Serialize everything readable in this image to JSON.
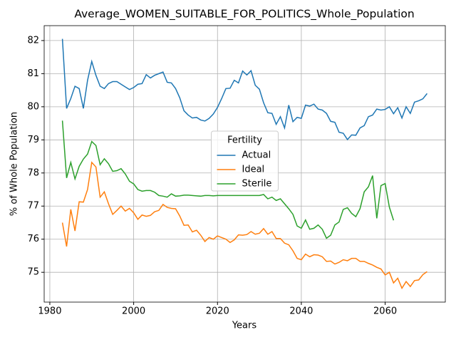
{
  "chart_data": {
    "type": "line",
    "title": "Average_WOMEN_SUITABLE_FOR_POLITICS_Whole_Population",
    "xlabel": "Years",
    "ylabel": "% of Whole Population",
    "legend_title": "Fertility",
    "legend": "center",
    "grid": true,
    "xlim": [
      1978.65,
      2074.35
    ],
    "xticks": [
      1980,
      2000,
      2020,
      2040,
      2060
    ],
    "ylim": [
      74.1,
      82.45
    ],
    "yticks": [
      75,
      76,
      77,
      78,
      79,
      80,
      81,
      82
    ],
    "x": [
      1983,
      1984,
      1985,
      1986,
      1987,
      1988,
      1989,
      1990,
      1991,
      1992,
      1993,
      1994,
      1995,
      1996,
      1997,
      1998,
      1999,
      2000,
      2001,
      2002,
      2003,
      2004,
      2005,
      2006,
      2007,
      2008,
      2009,
      2010,
      2011,
      2012,
      2013,
      2014,
      2015,
      2016,
      2017,
      2018,
      2019,
      2020,
      2021,
      2022,
      2023,
      2024,
      2025,
      2026,
      2027,
      2028,
      2029,
      2030,
      2031,
      2032,
      2033,
      2034,
      2035,
      2036,
      2037,
      2038,
      2039,
      2040,
      2041,
      2042,
      2043,
      2044,
      2045,
      2046,
      2047,
      2048,
      2049,
      2050,
      2051,
      2052,
      2053,
      2054,
      2055,
      2056,
      2057,
      2058,
      2059,
      2060,
      2061,
      2062,
      2063,
      2064,
      2065,
      2066,
      2067,
      2068,
      2069,
      2070
    ],
    "series": [
      {
        "name": "Actual",
        "color": "#1f77b4",
        "values": [
          82.05,
          79.95,
          80.25,
          80.62,
          80.55,
          79.95,
          80.8,
          81.37,
          80.95,
          80.62,
          80.55,
          80.7,
          80.76,
          80.76,
          80.68,
          80.6,
          80.52,
          80.58,
          80.68,
          80.7,
          80.97,
          80.87,
          80.95,
          81.0,
          81.05,
          80.74,
          80.72,
          80.55,
          80.27,
          79.88,
          79.75,
          79.66,
          79.68,
          79.6,
          79.57,
          79.65,
          79.78,
          79.98,
          80.25,
          80.55,
          80.56,
          80.8,
          80.72,
          81.08,
          80.96,
          81.09,
          80.65,
          80.53,
          80.12,
          79.82,
          79.8,
          79.47,
          79.7,
          79.36,
          80.05,
          79.55,
          79.68,
          79.65,
          80.05,
          80.02,
          80.08,
          79.93,
          79.9,
          79.8,
          79.56,
          79.53,
          79.23,
          79.2,
          79.01,
          79.15,
          79.14,
          79.36,
          79.43,
          79.7,
          79.75,
          79.93,
          79.9,
          79.92,
          80.0,
          79.79,
          79.97,
          79.66,
          80.0,
          79.8,
          80.14,
          80.18,
          80.24,
          80.4
        ]
      },
      {
        "name": "Ideal",
        "color": "#ff7f0e",
        "values": [
          76.5,
          75.78,
          76.9,
          76.25,
          77.13,
          77.12,
          77.5,
          78.32,
          78.18,
          77.27,
          77.43,
          77.07,
          76.75,
          76.87,
          77.0,
          76.85,
          76.93,
          76.8,
          76.6,
          76.73,
          76.69,
          76.72,
          76.83,
          76.87,
          77.05,
          76.96,
          76.93,
          76.92,
          76.7,
          76.42,
          76.43,
          76.22,
          76.27,
          76.12,
          75.93,
          76.05,
          76.0,
          76.1,
          76.05,
          76.0,
          75.9,
          75.98,
          76.13,
          76.12,
          76.14,
          76.23,
          76.15,
          76.18,
          76.32,
          76.15,
          76.23,
          76.02,
          76.02,
          75.88,
          75.83,
          75.65,
          75.42,
          75.38,
          75.55,
          75.47,
          75.53,
          75.52,
          75.47,
          75.33,
          75.34,
          75.25,
          75.3,
          75.38,
          75.35,
          75.42,
          75.42,
          75.33,
          75.33,
          75.27,
          75.22,
          75.15,
          75.1,
          74.92,
          75.0,
          74.68,
          74.82,
          74.52,
          74.72,
          74.57,
          74.75,
          74.77,
          74.93,
          75.02
        ]
      },
      {
        "name": "Sterile",
        "color": "#2ca02c",
        "values": [
          79.58,
          77.85,
          78.32,
          77.82,
          78.2,
          78.42,
          78.57,
          78.95,
          78.83,
          78.25,
          78.43,
          78.28,
          78.05,
          78.07,
          78.13,
          77.97,
          77.75,
          77.67,
          77.5,
          77.45,
          77.47,
          77.47,
          77.42,
          77.32,
          77.3,
          77.27,
          77.37,
          77.3,
          77.31,
          77.33,
          77.33,
          77.32,
          77.31,
          77.3,
          77.32,
          77.32,
          77.31,
          77.32,
          77.32,
          77.32,
          77.32,
          77.32,
          77.32,
          77.32,
          77.32,
          77.32,
          77.32,
          77.32,
          77.35,
          77.22,
          77.27,
          77.17,
          77.22,
          77.07,
          76.92,
          76.75,
          76.4,
          76.33,
          76.58,
          76.3,
          76.33,
          76.43,
          76.3,
          76.03,
          76.12,
          76.43,
          76.52,
          76.9,
          76.95,
          76.78,
          76.68,
          76.92,
          77.43,
          77.58,
          77.92,
          76.63,
          77.62,
          77.68,
          76.97,
          76.57,
          null,
          null,
          null,
          null,
          null,
          null,
          null,
          null
        ]
      }
    ]
  }
}
